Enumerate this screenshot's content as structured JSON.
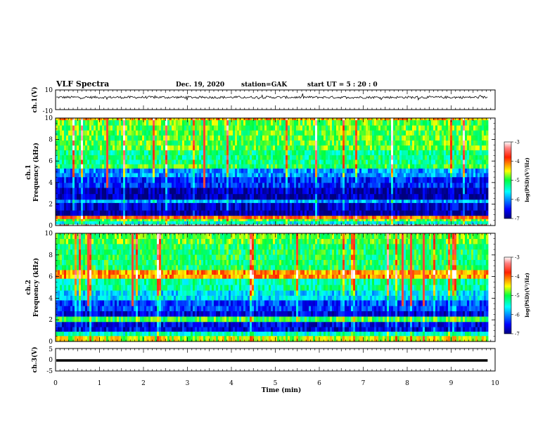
{
  "header": {
    "title": "VLF Spectra",
    "date": "Dec. 19, 2020",
    "station": "station=GAK",
    "start_time": "start  UT =  5 : 20 : 0"
  },
  "chart_data": [
    {
      "type": "line",
      "panel": "ch1-waveform",
      "ylabel": "ch.1(V)",
      "ylim": [
        -10,
        10
      ],
      "yticks": [
        "10",
        "-10"
      ],
      "baseline": 2.5,
      "xlim": [
        0,
        10
      ]
    },
    {
      "type": "heatmap",
      "panel": "ch1-spectrogram",
      "ylabel": "ch.1\nFrequency (kHz)",
      "ylim": [
        0,
        10
      ],
      "yticks": [
        "10",
        "8",
        "6",
        "4",
        "2",
        "0"
      ],
      "xlim": [
        0,
        10
      ],
      "data_end_min": 9.83,
      "colorbar": {
        "label": "log(PSD)(V²/Hz)",
        "ticks": [
          "-3",
          "-4",
          "-5",
          "-6",
          "-7"
        ],
        "range": [
          -7,
          -3
        ]
      },
      "bands": [
        {
          "f": [
            9.8,
            10.0
          ],
          "v": -4.3
        },
        {
          "f": [
            7.0,
            9.8
          ],
          "v": -4.9
        },
        {
          "f": [
            5.7,
            7.0
          ],
          "v": -5.2
        },
        {
          "f": [
            5.3,
            5.7
          ],
          "v": -5.0
        },
        {
          "f": [
            4.5,
            5.3
          ],
          "v": -6.0
        },
        {
          "f": [
            3.5,
            4.5
          ],
          "v": -6.4
        },
        {
          "f": [
            2.4,
            3.5
          ],
          "v": -6.8
        },
        {
          "f": [
            2.1,
            2.4
          ],
          "v": -5.9
        },
        {
          "f": [
            1.4,
            2.1
          ],
          "v": -6.7
        },
        {
          "f": [
            0.9,
            1.4
          ],
          "v": -6.9
        },
        {
          "f": [
            0.6,
            0.9
          ],
          "v": -4.0
        },
        {
          "f": [
            0.4,
            0.6
          ],
          "v": -4.8
        },
        {
          "f": [
            0.1,
            0.4
          ],
          "v": -5.5
        },
        {
          "f": [
            0.0,
            0.1
          ],
          "v": -3.3
        }
      ]
    },
    {
      "type": "heatmap",
      "panel": "ch2-spectrogram",
      "ylabel": "ch.2\nFrequency (kHz)",
      "ylim": [
        0,
        10
      ],
      "yticks": [
        "10",
        "8",
        "6",
        "4",
        "2",
        "0"
      ],
      "xlim": [
        0,
        10
      ],
      "data_end_min": 9.83,
      "colorbar": {
        "label": "log(PSD)(V²/Hz)",
        "ticks": [
          "-3",
          "-4",
          "-5",
          "-6",
          "-7"
        ],
        "range": [
          -7,
          -3
        ]
      },
      "bands": [
        {
          "f": [
            9.0,
            10.0
          ],
          "v": -4.9
        },
        {
          "f": [
            6.6,
            9.0
          ],
          "v": -5.1
        },
        {
          "f": [
            5.8,
            6.6
          ],
          "v": -4.2
        },
        {
          "f": [
            4.7,
            5.8
          ],
          "v": -5.3
        },
        {
          "f": [
            3.8,
            4.7
          ],
          "v": -5.7
        },
        {
          "f": [
            2.8,
            3.8
          ],
          "v": -6.3
        },
        {
          "f": [
            2.3,
            2.8
          ],
          "v": -6.6
        },
        {
          "f": [
            1.8,
            2.3
          ],
          "v": -5.0
        },
        {
          "f": [
            0.9,
            1.8
          ],
          "v": -6.6
        },
        {
          "f": [
            0.5,
            0.9
          ],
          "v": -5.4
        },
        {
          "f": [
            0.0,
            0.5
          ],
          "v": -4.6
        }
      ]
    },
    {
      "type": "line",
      "panel": "ch3-waveform",
      "ylabel": "ch.3(V)",
      "ylim": [
        -5,
        5
      ],
      "yticks": [
        "5",
        "0",
        "-5"
      ],
      "baseline": -0.3,
      "xlim": [
        0,
        10
      ]
    }
  ],
  "x_axis": {
    "label": "Time (min)",
    "ticks": [
      "0",
      "1",
      "2",
      "3",
      "4",
      "5",
      "6",
      "7",
      "8",
      "9",
      "10"
    ]
  }
}
